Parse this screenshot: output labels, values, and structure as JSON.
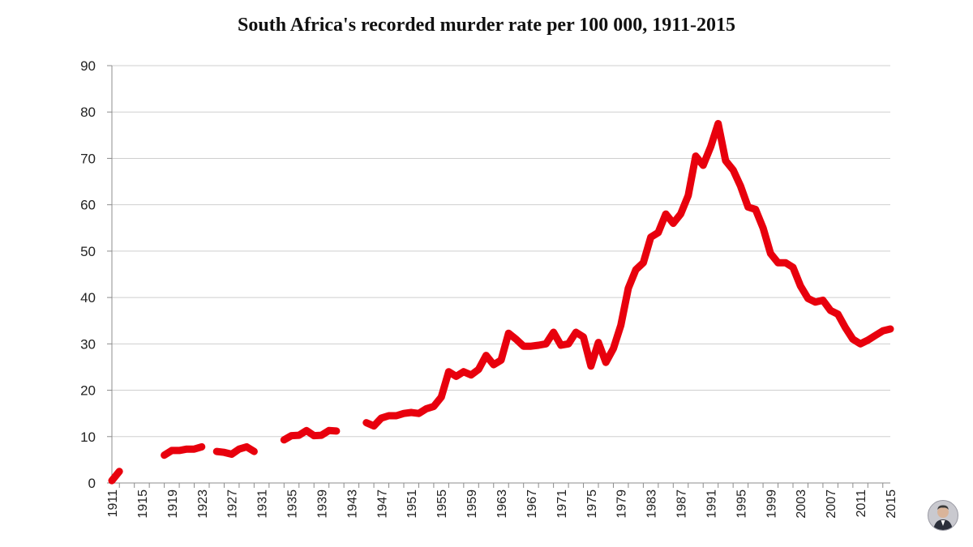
{
  "chart_data": {
    "type": "line",
    "title": "South Africa's recorded murder rate per 100 000, 1911-2015",
    "xlabel": "",
    "ylabel": "",
    "xlim": [
      1911,
      2015
    ],
    "ylim": [
      0,
      90
    ],
    "yticks": [
      0,
      10,
      20,
      30,
      40,
      50,
      60,
      70,
      80,
      90
    ],
    "xticks": [
      1911,
      1915,
      1919,
      1923,
      1927,
      1931,
      1935,
      1939,
      1943,
      1947,
      1951,
      1955,
      1959,
      1963,
      1967,
      1971,
      1975,
      1979,
      1983,
      1987,
      1991,
      1995,
      1999,
      2003,
      2007,
      2011,
      2015
    ],
    "grid": true,
    "series": [
      {
        "name": "Murder rate per 100 000",
        "color": "#e8000d",
        "segments": [
          {
            "x": [
              1911,
              1912
            ],
            "y": [
              0.5,
              2.5
            ]
          },
          {
            "x": [
              1918,
              1919,
              1920,
              1921,
              1922,
              1923
            ],
            "y": [
              6,
              7,
              7,
              7.3,
              7.3,
              7.8
            ]
          },
          {
            "x": [
              1925,
              1926,
              1927,
              1928,
              1929,
              1930
            ],
            "y": [
              6.8,
              6.6,
              6.2,
              7.3,
              7.8,
              6.8
            ]
          },
          {
            "x": [
              1934,
              1935,
              1936,
              1937,
              1938,
              1939,
              1940,
              1941
            ],
            "y": [
              9.3,
              10.2,
              10.3,
              11.3,
              10.2,
              10.3,
              11.3,
              11.2
            ]
          },
          {
            "x": [
              1945,
              1946,
              1947,
              1948,
              1949,
              1950,
              1951,
              1952,
              1953,
              1954,
              1955,
              1956,
              1957,
              1958,
              1959,
              1960,
              1961,
              1962,
              1963,
              1964,
              1965,
              1966,
              1967,
              1968,
              1969,
              1970,
              1971,
              1972,
              1973,
              1974,
              1975,
              1976,
              1977,
              1978,
              1979,
              1980,
              1981,
              1982,
              1983,
              1984,
              1985,
              1986,
              1987,
              1988,
              1989,
              1990,
              1991,
              1992,
              1993,
              1994,
              1995,
              1996,
              1997,
              1998,
              1999,
              2000,
              2001,
              2002,
              2003,
              2004,
              2005,
              2006,
              2007,
              2008,
              2009,
              2010,
              2011,
              2012,
              2013,
              2014,
              2015
            ],
            "y": [
              13,
              12.3,
              14,
              14.5,
              14.5,
              15,
              15.2,
              15,
              16,
              16.5,
              18.5,
              24,
              23,
              24,
              23.3,
              24.5,
              27.5,
              25.5,
              26.5,
              32.3,
              31,
              29.5,
              29.5,
              29.7,
              30,
              32.5,
              29.7,
              30,
              32.5,
              31.5,
              25.2,
              30.3,
              26,
              29,
              34,
              42,
              46,
              47.5,
              53,
              54,
              58,
              56,
              58,
              62,
              70.5,
              68.5,
              72.5,
              77.5,
              69.5,
              67.5,
              64,
              59.5,
              59,
              55,
              49.5,
              47.5,
              47.5,
              46.5,
              42.5,
              39.8,
              39,
              39.4,
              37.2,
              36.4,
              33.5,
              31,
              30,
              30.8,
              31.8,
              32.8,
              33.2
            ]
          }
        ]
      }
    ]
  },
  "presenter": {
    "label": "Presenter"
  }
}
